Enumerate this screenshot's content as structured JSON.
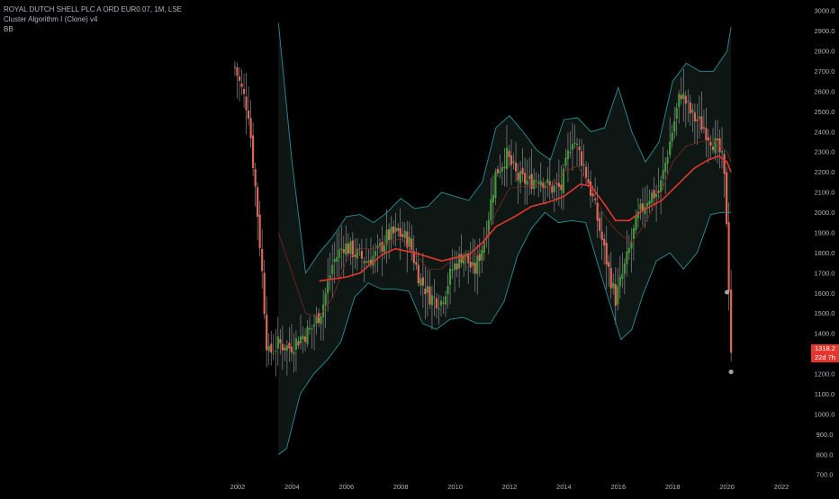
{
  "legend": {
    "symbol": "ROYAL DUTCH SHELL PLC A ORD EUR0.07, 1M, LSE",
    "indicator1": "Cluster Algorithm I (Clone) v4",
    "indicator2": "BB"
  },
  "price_tag": {
    "price": "1318.2",
    "countdown": "22d 7h"
  },
  "colors": {
    "background": "#000000",
    "up": "#3d9a35",
    "down": "#e0645a",
    "ma": "#e5362d",
    "band": "#2a8f9a",
    "band_fill": "#0f1714",
    "marker": "#9aa4a0",
    "axis_text": "#b2b5be"
  },
  "chart_data": {
    "type": "candlestick",
    "title": "ROYAL DUTCH SHELL PLC A ORD EUR0.07, 1M, LSE",
    "x_ticks": [
      "2002",
      "2004",
      "2006",
      "2008",
      "2010",
      "2012",
      "2014",
      "2016",
      "2018",
      "2020",
      "2022"
    ],
    "y_ticks": [
      "700.0",
      "800.0",
      "900.0",
      "1000.0",
      "1100.0",
      "1200.0",
      "1300.0",
      "1400.0",
      "1500.0",
      "1600.0",
      "1700.0",
      "1800.0",
      "1900.0",
      "2000.0",
      "2100.0",
      "2200.0",
      "2300.0",
      "2400.0",
      "2500.0",
      "2600.0",
      "2700.0",
      "2800.0",
      "2900.0",
      "3000.0"
    ],
    "ylim": [
      700,
      3000
    ],
    "xlim": [
      2000.0,
      2023.65
    ],
    "price_path": [
      [
        2001.9,
        2720
      ],
      [
        2002.1,
        2630
      ],
      [
        2002.4,
        2500
      ],
      [
        2002.7,
        2050
      ],
      [
        2002.9,
        1700
      ],
      [
        2003.1,
        1290
      ],
      [
        2003.5,
        1350
      ],
      [
        2003.9,
        1330
      ],
      [
        2004.3,
        1380
      ],
      [
        2004.7,
        1420
      ],
      [
        2005.1,
        1520
      ],
      [
        2005.5,
        1750
      ],
      [
        2005.9,
        1840
      ],
      [
        2006.3,
        1800
      ],
      [
        2006.7,
        1760
      ],
      [
        2007.1,
        1790
      ],
      [
        2007.5,
        1880
      ],
      [
        2007.9,
        1900
      ],
      [
        2008.3,
        1860
      ],
      [
        2008.7,
        1670
      ],
      [
        2009.1,
        1580
      ],
      [
        2009.5,
        1560
      ],
      [
        2009.9,
        1720
      ],
      [
        2010.3,
        1800
      ],
      [
        2010.7,
        1700
      ],
      [
        2011.1,
        1880
      ],
      [
        2011.5,
        2200
      ],
      [
        2011.9,
        2280
      ],
      [
        2012.3,
        2170
      ],
      [
        2012.7,
        2150
      ],
      [
        2013.1,
        2180
      ],
      [
        2013.5,
        2120
      ],
      [
        2013.9,
        2120
      ],
      [
        2014.3,
        2380
      ],
      [
        2014.7,
        2250
      ],
      [
        2015.1,
        2050
      ],
      [
        2015.5,
        1800
      ],
      [
        2015.9,
        1570
      ],
      [
        2016.3,
        1760
      ],
      [
        2016.7,
        1970
      ],
      [
        2017.1,
        2080
      ],
      [
        2017.5,
        2100
      ],
      [
        2017.9,
        2350
      ],
      [
        2018.3,
        2600
      ],
      [
        2018.7,
        2480
      ],
      [
        2019.1,
        2430
      ],
      [
        2019.5,
        2350
      ],
      [
        2019.8,
        2280
      ],
      [
        2019.95,
        2100
      ],
      [
        2020.05,
        1700
      ],
      [
        2020.15,
        1318
      ]
    ],
    "ma": [
      [
        2005.0,
        1660
      ],
      [
        2006.0,
        1680
      ],
      [
        2006.5,
        1700
      ],
      [
        2007.3,
        1790
      ],
      [
        2007.8,
        1820
      ],
      [
        2008.5,
        1800
      ],
      [
        2009.5,
        1760
      ],
      [
        2010.5,
        1790
      ],
      [
        2011.0,
        1850
      ],
      [
        2011.5,
        1930
      ],
      [
        2012.2,
        1980
      ],
      [
        2012.8,
        2030
      ],
      [
        2013.4,
        2050
      ],
      [
        2014.0,
        2080
      ],
      [
        2014.6,
        2140
      ],
      [
        2015.0,
        2130
      ],
      [
        2015.5,
        2040
      ],
      [
        2015.9,
        1960
      ],
      [
        2016.4,
        1960
      ],
      [
        2016.9,
        2010
      ],
      [
        2017.6,
        2060
      ],
      [
        2018.2,
        2140
      ],
      [
        2018.8,
        2220
      ],
      [
        2019.3,
        2260
      ],
      [
        2019.7,
        2280
      ],
      [
        2020.0,
        2250
      ],
      [
        2020.15,
        2200
      ]
    ],
    "bb_upper": [
      [
        2003.5,
        2940
      ],
      [
        2004.0,
        2250
      ],
      [
        2004.5,
        1700
      ],
      [
        2005.0,
        1800
      ],
      [
        2005.5,
        1880
      ],
      [
        2006.0,
        1980
      ],
      [
        2006.5,
        1990
      ],
      [
        2007.0,
        1950
      ],
      [
        2007.5,
        2000
      ],
      [
        2008.0,
        2070
      ],
      [
        2008.5,
        2020
      ],
      [
        2009.0,
        2030
      ],
      [
        2009.5,
        2100
      ],
      [
        2010.0,
        2080
      ],
      [
        2010.5,
        2060
      ],
      [
        2011.0,
        2150
      ],
      [
        2011.5,
        2420
      ],
      [
        2012.0,
        2480
      ],
      [
        2012.5,
        2400
      ],
      [
        2013.0,
        2310
      ],
      [
        2013.5,
        2260
      ],
      [
        2014.0,
        2460
      ],
      [
        2014.5,
        2470
      ],
      [
        2015.0,
        2400
      ],
      [
        2015.5,
        2420
      ],
      [
        2016.0,
        2620
      ],
      [
        2016.5,
        2400
      ],
      [
        2017.0,
        2250
      ],
      [
        2017.5,
        2350
      ],
      [
        2018.0,
        2650
      ],
      [
        2018.5,
        2740
      ],
      [
        2019.0,
        2700
      ],
      [
        2019.5,
        2700
      ],
      [
        2020.0,
        2800
      ],
      [
        2020.15,
        2920
      ]
    ],
    "bb_lower": [
      [
        2003.5,
        800
      ],
      [
        2003.8,
        830
      ],
      [
        2004.3,
        1100
      ],
      [
        2004.8,
        1200
      ],
      [
        2005.3,
        1270
      ],
      [
        2005.8,
        1360
      ],
      [
        2006.3,
        1580
      ],
      [
        2006.8,
        1650
      ],
      [
        2007.3,
        1620
      ],
      [
        2007.8,
        1620
      ],
      [
        2008.3,
        1610
      ],
      [
        2008.8,
        1450
      ],
      [
        2009.3,
        1420
      ],
      [
        2009.8,
        1470
      ],
      [
        2010.3,
        1480
      ],
      [
        2010.8,
        1450
      ],
      [
        2011.3,
        1450
      ],
      [
        2011.8,
        1560
      ],
      [
        2012.3,
        1790
      ],
      [
        2012.8,
        1920
      ],
      [
        2013.3,
        2000
      ],
      [
        2013.8,
        1950
      ],
      [
        2014.3,
        1960
      ],
      [
        2014.8,
        1950
      ],
      [
        2015.3,
        1720
      ],
      [
        2015.8,
        1500
      ],
      [
        2016.1,
        1370
      ],
      [
        2016.5,
        1420
      ],
      [
        2016.9,
        1590
      ],
      [
        2017.4,
        1760
      ],
      [
        2017.9,
        1800
      ],
      [
        2018.4,
        1720
      ],
      [
        2018.9,
        1800
      ],
      [
        2019.4,
        1990
      ],
      [
        2019.8,
        2000
      ],
      [
        2020.15,
        2000
      ]
    ],
    "bb_mid": [
      [
        2003.5,
        1900
      ],
      [
        2004.0,
        1700
      ],
      [
        2004.5,
        1500
      ],
      [
        2005.0,
        1480
      ],
      [
        2005.5,
        1580
      ],
      [
        2006.0,
        1760
      ],
      [
        2006.5,
        1820
      ],
      [
        2007.0,
        1820
      ],
      [
        2007.5,
        1850
      ],
      [
        2008.0,
        1870
      ],
      [
        2008.5,
        1800
      ],
      [
        2009.0,
        1720
      ],
      [
        2009.5,
        1720
      ],
      [
        2010.0,
        1780
      ],
      [
        2010.5,
        1760
      ],
      [
        2011.0,
        1820
      ],
      [
        2011.5,
        2000
      ],
      [
        2012.0,
        2120
      ],
      [
        2012.5,
        2130
      ],
      [
        2013.0,
        2130
      ],
      [
        2013.5,
        2120
      ],
      [
        2014.0,
        2200
      ],
      [
        2014.5,
        2230
      ],
      [
        2015.0,
        2120
      ],
      [
        2015.5,
        1980
      ],
      [
        2016.0,
        1900
      ],
      [
        2016.5,
        1850
      ],
      [
        2017.0,
        1950
      ],
      [
        2017.5,
        2070
      ],
      [
        2018.0,
        2250
      ],
      [
        2018.5,
        2330
      ],
      [
        2019.0,
        2350
      ],
      [
        2019.5,
        2360
      ],
      [
        2020.0,
        2300
      ],
      [
        2020.15,
        2250
      ]
    ],
    "markers": [
      {
        "x": 2020.0,
        "y": 1605
      },
      {
        "x": 2020.15,
        "y": 1210
      }
    ]
  }
}
